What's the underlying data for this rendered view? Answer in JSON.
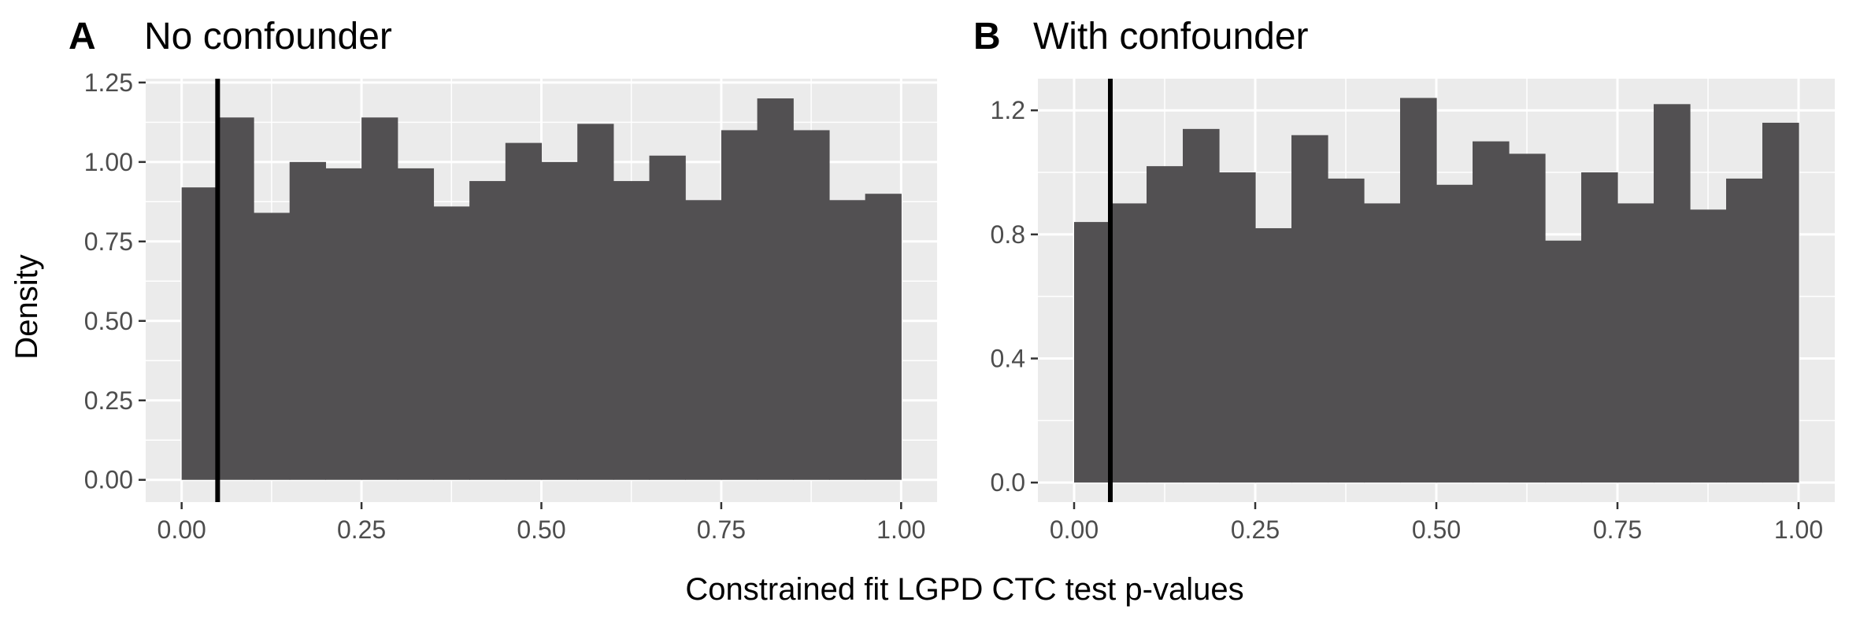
{
  "figure": {
    "xlabel": "Constrained fit LGPD CTC test p-values",
    "ylabel": "Density"
  },
  "colors": {
    "panel_background": "#ebebeb",
    "grid_major": "#ffffff",
    "bar_fill": "#525052",
    "reference_line": "#000000",
    "tick_text": "#4d4d4d"
  },
  "chart_data": [
    {
      "type": "bar",
      "tag": "A",
      "title": "No confounder",
      "xlabel": "Constrained fit LGPD CTC test p-values",
      "ylabel": "Density",
      "bin_width": 0.05,
      "bin_starts": [
        0.0,
        0.05,
        0.1,
        0.15,
        0.2,
        0.25,
        0.3,
        0.35,
        0.4,
        0.45,
        0.5,
        0.55,
        0.6,
        0.65,
        0.7,
        0.75,
        0.8,
        0.85,
        0.9,
        0.95
      ],
      "values": [
        0.92,
        1.14,
        0.84,
        1.0,
        0.98,
        1.14,
        0.98,
        0.86,
        0.94,
        1.06,
        1.0,
        1.12,
        0.94,
        1.02,
        0.88,
        1.1,
        1.2,
        1.1,
        0.88,
        0.9
      ],
      "xlim": [
        -0.05,
        1.05
      ],
      "ylim": [
        -0.07,
        1.262
      ],
      "x_ticks": [
        0,
        0.25,
        0.5,
        0.75,
        1
      ],
      "x_tick_labels": [
        "0.00",
        "0.25",
        "0.50",
        "0.75",
        "1.00"
      ],
      "y_ticks": [
        0,
        0.25,
        0.5,
        0.75,
        1,
        1.25
      ],
      "y_tick_labels": [
        "0.00",
        "0.25",
        "0.50",
        "0.75",
        "1.00",
        "1.25"
      ],
      "vline": 0.05,
      "grid": true
    },
    {
      "type": "bar",
      "tag": "B",
      "title": "With confounder",
      "xlabel": "Constrained fit LGPD CTC test p-values",
      "ylabel": "Density",
      "bin_width": 0.05,
      "bin_starts": [
        0.0,
        0.05,
        0.1,
        0.15,
        0.2,
        0.25,
        0.3,
        0.35,
        0.4,
        0.45,
        0.5,
        0.55,
        0.6,
        0.65,
        0.7,
        0.75,
        0.8,
        0.85,
        0.9,
        0.95
      ],
      "values": [
        0.84,
        0.9,
        1.02,
        1.14,
        1.0,
        0.82,
        1.12,
        0.98,
        0.9,
        1.24,
        0.96,
        1.1,
        1.06,
        0.78,
        1.0,
        0.9,
        1.22,
        0.88,
        0.98,
        1.16
      ],
      "xlim": [
        -0.05,
        1.05
      ],
      "ylim": [
        -0.063,
        1.302
      ],
      "x_ticks": [
        0,
        0.25,
        0.5,
        0.75,
        1
      ],
      "x_tick_labels": [
        "0.00",
        "0.25",
        "0.50",
        "0.75",
        "1.00"
      ],
      "y_ticks": [
        0,
        0.4,
        0.8,
        1.2
      ],
      "y_tick_labels": [
        "0.0",
        "0.4",
        "0.8",
        "1.2"
      ],
      "vline": 0.05,
      "grid": true
    }
  ]
}
